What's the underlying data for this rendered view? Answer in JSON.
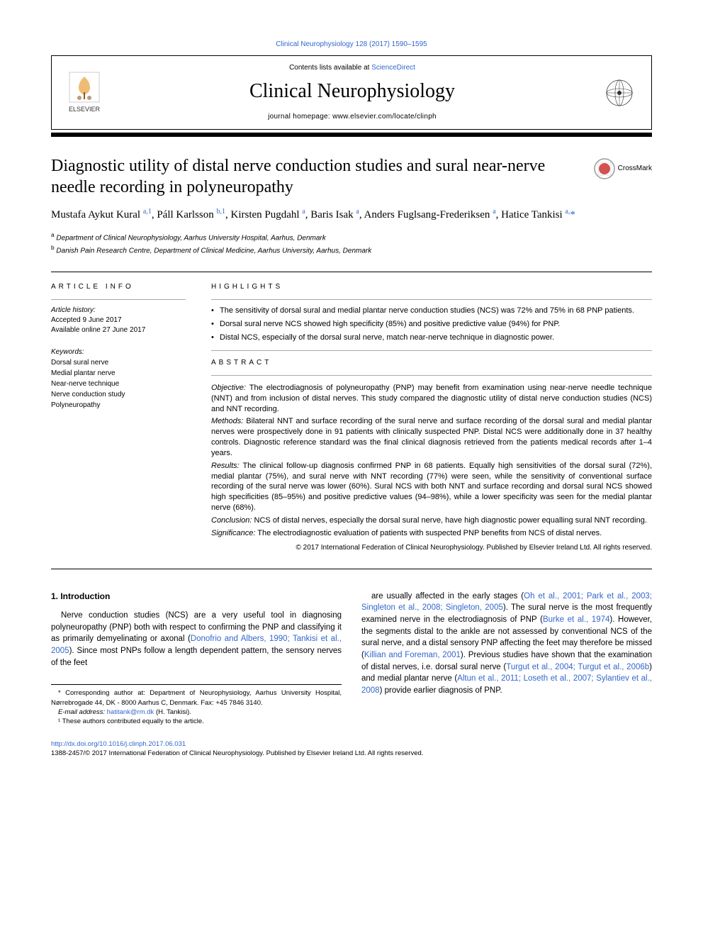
{
  "journal_ref": "Clinical Neurophysiology 128 (2017) 1590–1595",
  "header": {
    "contents_prefix": "Contents lists available at ",
    "contents_link": "ScienceDirect",
    "journal_name": "Clinical Neurophysiology",
    "homepage_prefix": "journal homepage: ",
    "homepage_url": "www.elsevier.com/locate/clinph",
    "elsevier_label": "ELSEVIER"
  },
  "crossmark_label": "CrossMark",
  "title": "Diagnostic utility of distal nerve conduction studies and sural near-nerve needle recording in polyneuropathy",
  "authors_html": "Mustafa Aykut Kural <sup>a,1</sup>, Páll Karlsson <sup>b,1</sup>, Kirsten Pugdahl <sup>a</sup>, Baris Isak <sup>a</sup>, Anders Fuglsang-Frederiksen <sup>a</sup>, Hatice Tankisi <sup>a,</sup><span class=\"asterisk\">*</span>",
  "affiliations": {
    "a": "Department of Clinical Neurophysiology, Aarhus University Hospital, Aarhus, Denmark",
    "b": "Danish Pain Research Centre, Department of Clinical Medicine, Aarhus University, Aarhus, Denmark"
  },
  "article_info": {
    "heading": "ARTICLE INFO",
    "history_label": "Article history:",
    "accepted": "Accepted 9 June 2017",
    "available": "Available online 27 June 2017",
    "keywords_label": "Keywords:",
    "keywords": [
      "Dorsal sural nerve",
      "Medial plantar nerve",
      "Near-nerve technique",
      "Nerve conduction study",
      "Polyneuropathy"
    ]
  },
  "highlights": {
    "heading": "HIGHLIGHTS",
    "items": [
      "The sensitivity of dorsal sural and medial plantar nerve conduction studies (NCS) was 72% and 75% in 68 PNP patients.",
      "Dorsal sural nerve NCS showed high specificity (85%) and positive predictive value (94%) for PNP.",
      "Distal NCS, especially of the dorsal sural nerve, match near-nerve technique in diagnostic power."
    ]
  },
  "abstract": {
    "heading": "ABSTRACT",
    "objective_label": "Objective:",
    "objective": "The electrodiagnosis of polyneuropathy (PNP) may benefit from examination using near-nerve needle technique (NNT) and from inclusion of distal nerves. This study compared the diagnostic utility of distal nerve conduction studies (NCS) and NNT recording.",
    "methods_label": "Methods:",
    "methods": "Bilateral NNT and surface recording of the sural nerve and surface recording of the dorsal sural and medial plantar nerves were prospectively done in 91 patients with clinically suspected PNP. Distal NCS were additionally done in 37 healthy controls. Diagnostic reference standard was the final clinical diagnosis retrieved from the patients medical records after 1–4 years.",
    "results_label": "Results:",
    "results": "The clinical follow-up diagnosis confirmed PNP in 68 patients. Equally high sensitivities of the dorsal sural (72%), medial plantar (75%), and sural nerve with NNT recording (77%) were seen, while the sensitivity of conventional surface recording of the sural nerve was lower (60%). Sural NCS with both NNT and surface recording and dorsal sural NCS showed high specificities (85–95%) and positive predictive values (94–98%), while a lower specificity was seen for the medial plantar nerve (68%).",
    "conclusion_label": "Conclusion:",
    "conclusion": "NCS of distal nerves, especially the dorsal sural nerve, have high diagnostic power equalling sural NNT recording.",
    "significance_label": "Significance:",
    "significance": "The electrodiagnostic evaluation of patients with suspected PNP benefits from NCS of distal nerves.",
    "copyright": "© 2017 International Federation of Clinical Neurophysiology. Published by Elsevier Ireland Ltd. All rights reserved."
  },
  "body": {
    "intro_heading": "1. Introduction",
    "intro_left": "Nerve conduction studies (NCS) are a very useful tool in diagnosing polyneuropathy (PNP) both with respect to confirming the PNP and classifying it as primarily demyelinating or axonal (<span class=\"ref-link\">Donofrio and Albers, 1990; Tankisi et al., 2005</span>). Since most PNPs follow a length dependent pattern, the sensory nerves of the feet",
    "intro_right": "are usually affected in the early stages (<span class=\"ref-link\">Oh et al., 2001; Park et al., 2003; Singleton et al., 2008; Singleton, 2005</span>). The sural nerve is the most frequently examined nerve in the electrodiagnosis of PNP (<span class=\"ref-link\">Burke et al., 1974</span>). However, the segments distal to the ankle are not assessed by conventional NCS of the sural nerve, and a distal sensory PNP affecting the feet may therefore be missed (<span class=\"ref-link\">Killian and Foreman, 2001</span>). Previous studies have shown that the examination of distal nerves, i.e. dorsal sural nerve (<span class=\"ref-link\">Turgut et al., 2004; Turgut et al., 2006b</span>) and medial plantar nerve (<span class=\"ref-link\">Altun et al., 2011; Loseth et al., 2007; Sylantiev et al., 2008</span>) provide earlier diagnosis of PNP."
  },
  "footnotes": {
    "corresponding": "* Corresponding author at: Department of Neurophysiology, Aarhus University Hospital, Nørrebrogade 44, DK - 8000 Aarhus C, Denmark. Fax: +45 7846 3140.",
    "email_label": "E-mail address: ",
    "email": "hatitank@rm.dk",
    "email_suffix": " (H. Tankisi).",
    "equal": "¹ These authors contributed equally to the article."
  },
  "footer": {
    "doi": "http://dx.doi.org/10.1016/j.clinph.2017.06.031",
    "issn_copyright": "1388-2457/© 2017 International Federation of Clinical Neurophysiology. Published by Elsevier Ireland Ltd. All rights reserved."
  },
  "colors": {
    "link": "#3366cc",
    "rule": "#000000",
    "text": "#000000",
    "light_rule": "#aaaaaa"
  }
}
